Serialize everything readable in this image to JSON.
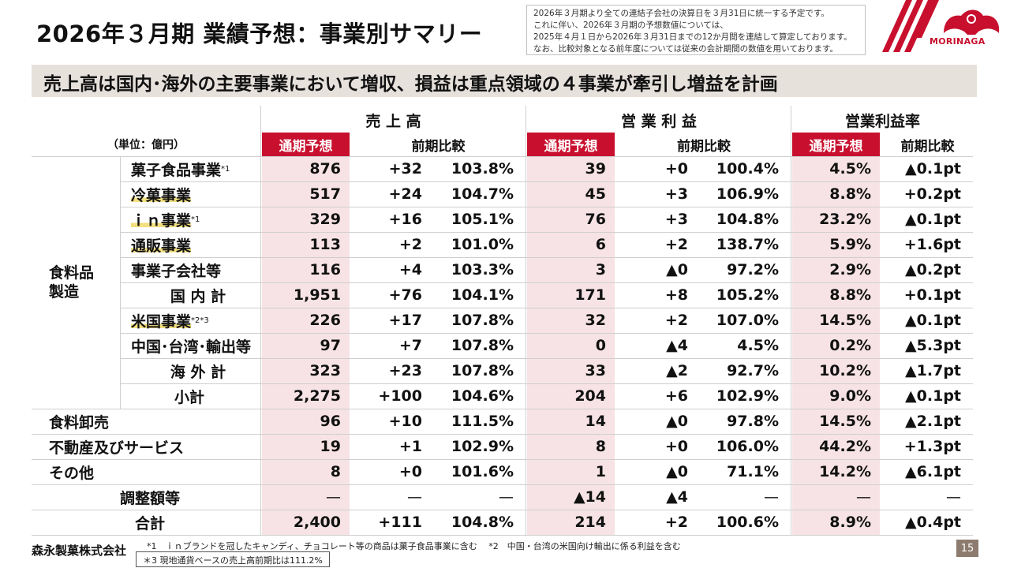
{
  "title": "2026年３月期 業績予想：事業別サマリー",
  "note": [
    "2026年３月期より全ての連結子会社の決算日を３月31日に統一する予定です。",
    "これに伴い、2026年３月期の予想数値については、",
    "2025年４月１日から2026年３月31日までの12か月間を連結して算定しております。",
    "なお、比較対象となる前年度については従来の会計期間の数値を用いております。"
  ],
  "logo_text": "MORINAGA",
  "banner": "売上高は国内･海外の主要事業において増収、損益は重点領域の４事業が牽引し増益を計画",
  "unit": "（単位：億円）",
  "headers": {
    "groups": [
      "売 上 高",
      "営 業 利 益",
      "営業利益率"
    ],
    "forecast": "通期予想",
    "yoy": "前期比較"
  },
  "group_label_food": "食料品\n製造",
  "rows": [
    {
      "label": "菓子食品事業",
      "sup": "*1",
      "hl": false,
      "values": [
        "876",
        "+32",
        "103.8%",
        "39",
        "+0",
        "100.4%",
        "4.5%",
        "▲0.1pt"
      ]
    },
    {
      "label": "冷菓事業",
      "sup": "",
      "hl": true,
      "values": [
        "517",
        "+24",
        "104.7%",
        "45",
        "+3",
        "106.9%",
        "8.8%",
        "+0.2pt"
      ]
    },
    {
      "label": "ｉｎ事業",
      "sup": "*1",
      "hl": true,
      "values": [
        "329",
        "+16",
        "105.1%",
        "76",
        "+3",
        "104.8%",
        "23.2%",
        "▲0.1pt"
      ]
    },
    {
      "label": "通販事業",
      "sup": "",
      "hl": true,
      "values": [
        "113",
        "+2",
        "101.0%",
        "6",
        "+2",
        "138.7%",
        "5.9%",
        "+1.6pt"
      ]
    },
    {
      "label": "事業子会社等",
      "sup": "",
      "hl": false,
      "values": [
        "116",
        "+4",
        "103.3%",
        "3",
        "▲0",
        "97.2%",
        "2.9%",
        "▲0.2pt"
      ]
    },
    {
      "label": "国 内 計",
      "sup": "",
      "hl": false,
      "values": [
        "1,951",
        "+76",
        "104.1%",
        "171",
        "+8",
        "105.2%",
        "8.8%",
        "+0.1pt"
      ]
    },
    {
      "label": "米国事業",
      "sup": "*2*3",
      "hl": true,
      "values": [
        "226",
        "+17",
        "107.8%",
        "32",
        "+2",
        "107.0%",
        "14.5%",
        "▲0.1pt"
      ]
    },
    {
      "label": "中国･台湾･輸出等",
      "sup": "",
      "hl": false,
      "values": [
        "97",
        "+7",
        "107.8%",
        "0",
        "▲4",
        "4.5%",
        "0.2%",
        "▲5.3pt"
      ]
    },
    {
      "label": "海 外 計",
      "sup": "",
      "hl": false,
      "values": [
        "323",
        "+23",
        "107.8%",
        "33",
        "▲2",
        "92.7%",
        "10.2%",
        "▲1.7pt"
      ]
    },
    {
      "label": "小計",
      "sup": "",
      "hl": false,
      "values": [
        "2,275",
        "+100",
        "104.6%",
        "204",
        "+6",
        "102.9%",
        "9.0%",
        "▲0.1pt"
      ]
    },
    {
      "label": "食料卸売",
      "sup": "",
      "hl": false,
      "values": [
        "96",
        "+10",
        "111.5%",
        "14",
        "▲0",
        "97.8%",
        "14.5%",
        "▲2.1pt"
      ]
    },
    {
      "label": "不動産及びサービス",
      "sup": "",
      "hl": false,
      "values": [
        "19",
        "+1",
        "102.9%",
        "8",
        "+0",
        "106.0%",
        "44.2%",
        "+1.3pt"
      ]
    },
    {
      "label": "その他",
      "sup": "",
      "hl": false,
      "values": [
        "8",
        "+0",
        "101.6%",
        "1",
        "▲0",
        "71.1%",
        "14.2%",
        "▲6.1pt"
      ]
    },
    {
      "label": "調整額等",
      "sup": "",
      "hl": false,
      "values": [
        "—",
        "—",
        "—",
        "▲14",
        "▲4",
        "—",
        "—",
        "—"
      ]
    },
    {
      "label": "合計",
      "sup": "",
      "hl": false,
      "values": [
        "2,400",
        "+111",
        "104.8%",
        "214",
        "+2",
        "100.6%",
        "8.9%",
        "▲0.4pt"
      ]
    }
  ],
  "footer": {
    "company": "森永製菓株式会社",
    "footnote1": "*1　ｉｎブランドを冠したキャンディ、チョコレート等の商品は菓子食品事業に含む　 *2　中国・台湾の米国向け輸出に係る利益を含む",
    "footnote3": "＊3  現地通貨ベースの売上高前期比は111.2%",
    "page": "15"
  },
  "colors": {
    "accent": "#c8102e",
    "pink": "#f7e3e5",
    "banner": "#e7e1dc",
    "highlight": "#f2df7f"
  }
}
